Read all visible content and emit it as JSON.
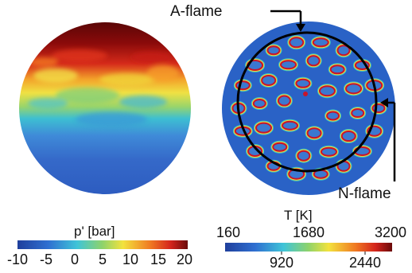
{
  "left_panel": {
    "colorbar": {
      "title": "p' [bar]",
      "ticks": [
        "-10",
        "-5",
        "0",
        "5",
        "10",
        "15",
        "20"
      ],
      "range": [
        -10,
        20
      ],
      "colormap": "jet"
    }
  },
  "right_panel": {
    "annotations": {
      "a_flame": "A-flame",
      "n_flame": "N-flame"
    },
    "colorbar": {
      "title": "T [K]",
      "ticks_top": [
        "160",
        "1680",
        "3200"
      ],
      "ticks_bottom": [
        "920",
        "2440"
      ],
      "range": [
        160,
        3200
      ],
      "colormap": "jet"
    }
  },
  "colors": {
    "background_field": "#2a62c6",
    "ring": "#000000",
    "flame_hot": "#c8142a",
    "flame_warm": "#f6d23c",
    "flame_mid": "#37c3c7"
  }
}
